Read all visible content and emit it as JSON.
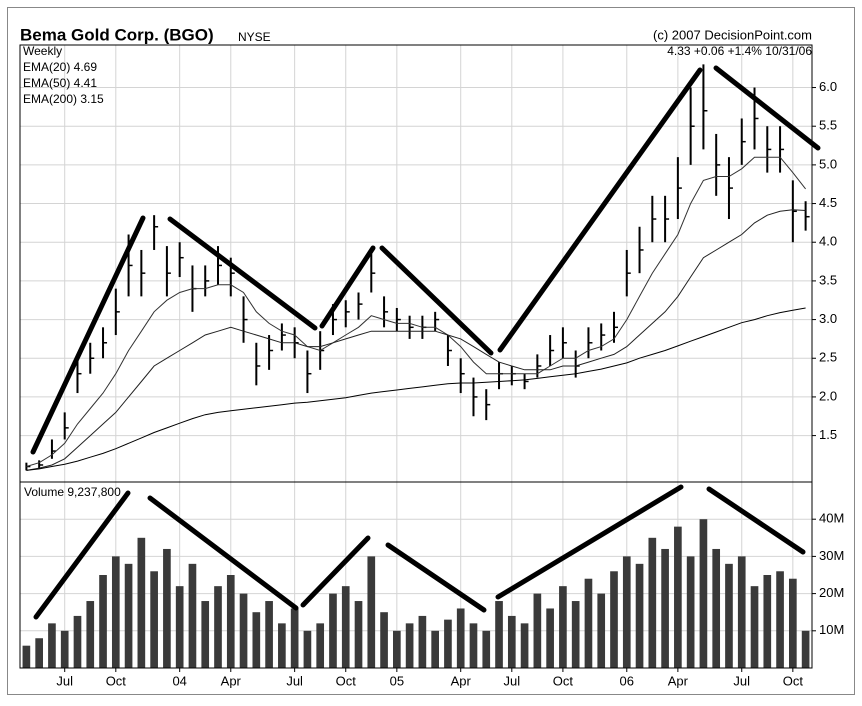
{
  "chart_data": [
    {
      "type": "hlc",
      "title": "Bema Gold Corp. (BGO)",
      "exchange": "NYSE",
      "source": "(c) 2007 DecisionPoint.com",
      "period": "Weekly",
      "last_quote": "4.33 +0.06 +1.4% 10/31/06",
      "color": "#000000",
      "high": [
        1.15,
        1.18,
        1.45,
        1.8,
        2.55,
        2.7,
        2.9,
        3.4,
        4.1,
        3.9,
        4.35,
        3.95,
        4.0,
        3.7,
        3.7,
        3.95,
        3.8,
        3.3,
        2.7,
        2.8,
        2.95,
        2.9,
        2.6,
        2.85,
        3.2,
        3.25,
        3.35,
        3.85,
        3.3,
        3.15,
        3.05,
        3.05,
        3.1,
        2.8,
        2.5,
        2.25,
        2.1,
        2.45,
        2.4,
        2.3,
        2.55,
        2.8,
        2.9,
        2.6,
        2.9,
        2.95,
        3.1,
        3.9,
        4.2,
        4.6,
        4.6,
        5.1,
        6.0,
        6.3,
        5.4,
        5.1,
        5.6,
        6.0,
        5.5,
        5.5,
        4.8,
        4.53
      ],
      "low": [
        1.05,
        1.07,
        1.2,
        1.45,
        2.05,
        2.3,
        2.5,
        2.8,
        3.3,
        3.3,
        3.9,
        3.3,
        3.55,
        3.1,
        3.3,
        3.45,
        3.3,
        2.7,
        2.15,
        2.35,
        2.6,
        2.5,
        2.05,
        2.35,
        2.8,
        2.9,
        3.0,
        3.35,
        2.9,
        2.85,
        2.75,
        2.75,
        2.85,
        2.4,
        2.05,
        1.75,
        1.7,
        2.1,
        2.15,
        2.1,
        2.25,
        2.4,
        2.5,
        2.25,
        2.5,
        2.6,
        2.7,
        3.3,
        3.6,
        4.0,
        4.0,
        4.3,
        5.0,
        5.2,
        4.6,
        4.3,
        5.0,
        5.2,
        4.9,
        4.9,
        4.0,
        4.15
      ],
      "close": [
        1.1,
        1.12,
        1.3,
        1.6,
        2.3,
        2.5,
        2.7,
        3.1,
        3.7,
        3.6,
        4.2,
        3.6,
        3.8,
        3.4,
        3.5,
        3.7,
        3.6,
        3.0,
        2.4,
        2.6,
        2.8,
        2.7,
        2.3,
        2.6,
        3.0,
        3.1,
        3.2,
        3.6,
        3.1,
        3.0,
        2.9,
        2.9,
        3.0,
        2.6,
        2.3,
        2.0,
        1.9,
        2.3,
        2.3,
        2.2,
        2.4,
        2.6,
        2.7,
        2.4,
        2.7,
        2.8,
        2.9,
        3.6,
        3.9,
        4.3,
        4.3,
        4.7,
        5.5,
        5.7,
        5.0,
        4.7,
        5.3,
        5.6,
        5.2,
        5.2,
        4.4,
        4.33
      ],
      "series": [
        {
          "name": "EMA(20) 4.69",
          "color": "#333333",
          "values": [
            1.1,
            1.15,
            1.25,
            1.4,
            1.65,
            1.85,
            2.05,
            2.3,
            2.6,
            2.85,
            3.1,
            3.25,
            3.35,
            3.4,
            3.4,
            3.45,
            3.45,
            3.35,
            3.1,
            2.95,
            2.85,
            2.8,
            2.65,
            2.6,
            2.7,
            2.8,
            2.9,
            3.05,
            3.0,
            2.95,
            2.95,
            2.9,
            2.9,
            2.8,
            2.65,
            2.45,
            2.3,
            2.3,
            2.3,
            2.3,
            2.3,
            2.4,
            2.5,
            2.5,
            2.6,
            2.65,
            2.75,
            3.0,
            3.3,
            3.6,
            3.85,
            4.1,
            4.5,
            4.8,
            4.85,
            4.85,
            4.95,
            5.1,
            5.1,
            5.1,
            4.9,
            4.69
          ]
        },
        {
          "name": "EMA(50) 4.41",
          "color": "#222222",
          "values": [
            1.05,
            1.08,
            1.12,
            1.2,
            1.35,
            1.5,
            1.65,
            1.8,
            2.0,
            2.2,
            2.4,
            2.5,
            2.6,
            2.7,
            2.8,
            2.85,
            2.9,
            2.85,
            2.8,
            2.75,
            2.7,
            2.7,
            2.65,
            2.65,
            2.7,
            2.75,
            2.8,
            2.85,
            2.85,
            2.85,
            2.85,
            2.85,
            2.85,
            2.8,
            2.75,
            2.65,
            2.55,
            2.45,
            2.4,
            2.35,
            2.35,
            2.35,
            2.4,
            2.4,
            2.45,
            2.5,
            2.55,
            2.65,
            2.8,
            2.95,
            3.1,
            3.3,
            3.55,
            3.8,
            3.9,
            4.0,
            4.1,
            4.25,
            4.35,
            4.4,
            4.42,
            4.41
          ]
        },
        {
          "name": "EMA(200) 3.15",
          "color": "#000000",
          "values": [
            1.05,
            1.07,
            1.1,
            1.13,
            1.17,
            1.22,
            1.27,
            1.33,
            1.4,
            1.47,
            1.54,
            1.6,
            1.66,
            1.72,
            1.77,
            1.8,
            1.82,
            1.84,
            1.86,
            1.88,
            1.9,
            1.92,
            1.93,
            1.95,
            1.97,
            1.99,
            2.02,
            2.05,
            2.07,
            2.09,
            2.11,
            2.13,
            2.15,
            2.17,
            2.18,
            2.18,
            2.19,
            2.2,
            2.21,
            2.22,
            2.24,
            2.26,
            2.28,
            2.3,
            2.33,
            2.36,
            2.4,
            2.44,
            2.5,
            2.55,
            2.6,
            2.66,
            2.72,
            2.78,
            2.84,
            2.9,
            2.96,
            3.0,
            3.05,
            3.09,
            3.12,
            3.15
          ]
        }
      ],
      "ylim": [
        0.9,
        6.55
      ],
      "yticks": [
        1.5,
        {
          "value": 2,
          "label": "2.0"
        },
        2.5,
        {
          "value": 3,
          "label": "3.0"
        },
        3.5,
        {
          "value": 4,
          "label": "4.0"
        },
        4.5,
        {
          "value": 5,
          "label": "5.0"
        },
        5.5,
        {
          "value": 6,
          "label": "6.0"
        }
      ],
      "grid": true
    },
    {
      "type": "bar",
      "title": "Volume 9,237,800",
      "color": "#3a3a3a",
      "categories": [
        null,
        null,
        null,
        "Jul",
        null,
        null,
        null,
        "Oct",
        null,
        null,
        null,
        null,
        "04",
        null,
        null,
        null,
        "Apr",
        null,
        null,
        null,
        null,
        "Jul",
        null,
        null,
        null,
        "Oct",
        null,
        null,
        null,
        "05",
        null,
        null,
        null,
        null,
        "Apr",
        null,
        null,
        null,
        "Jul",
        null,
        null,
        null,
        "Oct",
        null,
        null,
        null,
        null,
        "06",
        null,
        null,
        null,
        "Apr",
        null,
        null,
        null,
        null,
        "Jul",
        null,
        null,
        null,
        "Oct",
        null
      ],
      "values": [
        6,
        8,
        12,
        10,
        14,
        18,
        25,
        30,
        28,
        35,
        26,
        32,
        22,
        28,
        18,
        22,
        25,
        20,
        15,
        18,
        12,
        16,
        10,
        12,
        20,
        22,
        18,
        30,
        15,
        10,
        12,
        14,
        10,
        13,
        16,
        12,
        10,
        18,
        14,
        12,
        20,
        16,
        22,
        18,
        24,
        20,
        26,
        30,
        28,
        35,
        32,
        38,
        30,
        40,
        32,
        28,
        30,
        22,
        25,
        26,
        24,
        10
      ],
      "ylim": [
        0,
        50
      ],
      "yticks": [
        {
          "value": 10,
          "label": "10M"
        },
        {
          "value": 20,
          "label": "20M"
        },
        {
          "value": 30,
          "label": "30M"
        },
        {
          "value": 40,
          "label": "40M"
        }
      ],
      "grid": true
    }
  ]
}
